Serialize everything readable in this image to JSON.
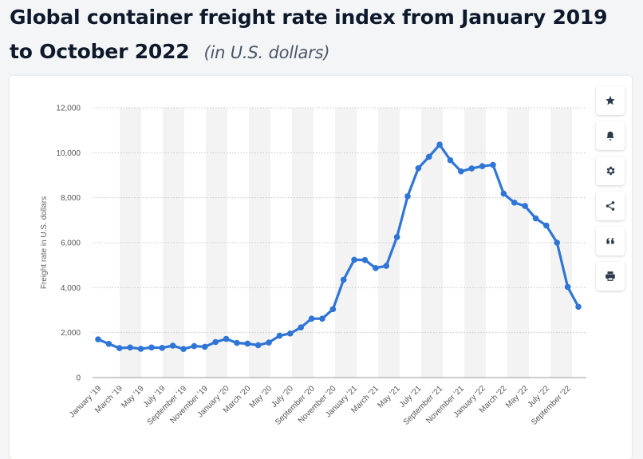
{
  "header": {
    "title": "Global container freight rate index from January 2019 to October 2022",
    "unit": "(in U.S. dollars)"
  },
  "toolbar": {
    "buttons": [
      {
        "name": "favorite-button",
        "icon": "star-icon"
      },
      {
        "name": "notification-button",
        "icon": "bell-icon"
      },
      {
        "name": "settings-button",
        "icon": "gear-icon"
      },
      {
        "name": "share-button",
        "icon": "share-icon"
      },
      {
        "name": "cite-button",
        "icon": "quote-icon"
      },
      {
        "name": "print-button",
        "icon": "printer-icon"
      }
    ]
  },
  "colors": {
    "line": "#2f75d6",
    "band": "#f3f3f3",
    "grid": "#c8c8c8"
  },
  "chart_data": {
    "type": "line",
    "title": "Global container freight rate index from January 2019 to October 2022",
    "xlabel": "",
    "ylabel": "Freight rate in U.S. dollars",
    "ylim": [
      0,
      12000
    ],
    "yticks": [
      0,
      2000,
      4000,
      6000,
      8000,
      10000,
      12000
    ],
    "ytick_labels": [
      "0",
      "2,000",
      "4,000",
      "6,000",
      "8,000",
      "10,000",
      "12,000"
    ],
    "x_labels": [
      "January '19",
      "March '19",
      "May '19",
      "July '19",
      "September '19",
      "November '19",
      "January '20",
      "March '20",
      "May '20",
      "July '20",
      "September '20",
      "November '20",
      "January '21",
      "March '21",
      "May '21",
      "July '21",
      "September '21",
      "November '21",
      "January '22",
      "March '22",
      "May '22",
      "July '22",
      "September '22"
    ],
    "series": [
      {
        "name": "Freight rate",
        "values": [
          1700,
          1500,
          1310,
          1340,
          1280,
          1340,
          1320,
          1420,
          1270,
          1400,
          1370,
          1580,
          1720,
          1540,
          1510,
          1440,
          1560,
          1860,
          1960,
          2230,
          2620,
          2620,
          3040,
          4350,
          5240,
          5230,
          4870,
          4970,
          6250,
          8060,
          9310,
          9820,
          10360,
          9670,
          9170,
          9300,
          9400,
          9460,
          8180,
          7780,
          7630,
          7080,
          6760,
          6000,
          4030,
          3150
        ]
      }
    ]
  }
}
